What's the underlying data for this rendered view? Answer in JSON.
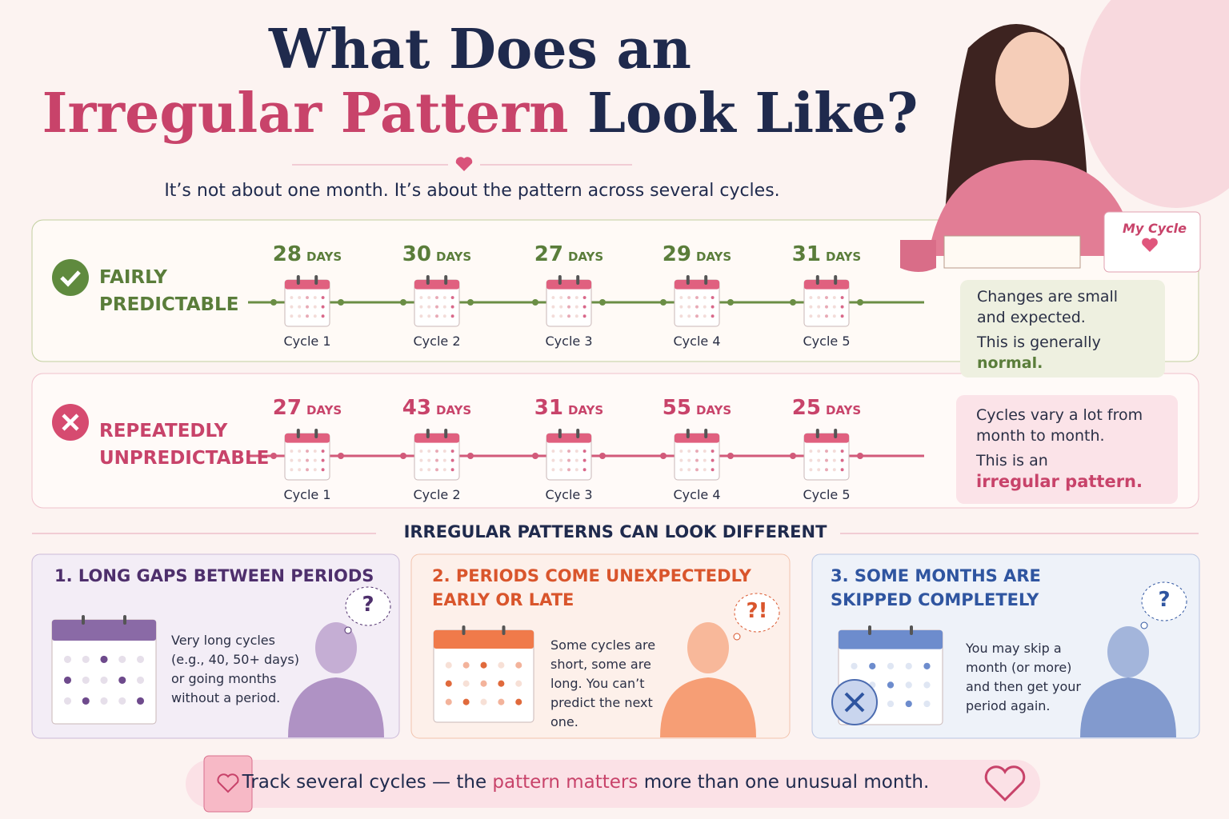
{
  "header": {
    "title_line1": "What Does an",
    "title_highlight": "Irregular Pattern",
    "title_end": "Look Like?",
    "subtitle": "It’s not about one month. It’s about the pattern across several cycles."
  },
  "illustration": {
    "calendar_label": "My Cycle"
  },
  "rows": [
    {
      "label": "FAIRLY PREDICTABLE",
      "unit": "DAYS",
      "cycles": [
        {
          "days": 28,
          "label": "Cycle 1"
        },
        {
          "days": 30,
          "label": "Cycle 2"
        },
        {
          "days": 27,
          "label": "Cycle 3"
        },
        {
          "days": 29,
          "label": "Cycle 4"
        },
        {
          "days": 31,
          "label": "Cycle 5"
        }
      ],
      "note_line1": "Changes are small and expected.",
      "note_line2": "This is generally",
      "note_highlight": "normal."
    },
    {
      "label": "REPEATEDLY UNPREDICTABLE",
      "unit": "DAYS",
      "cycles": [
        {
          "days": 27,
          "label": "Cycle 1"
        },
        {
          "days": 43,
          "label": "Cycle 2"
        },
        {
          "days": 31,
          "label": "Cycle 3"
        },
        {
          "days": 55,
          "label": "Cycle 4"
        },
        {
          "days": 25,
          "label": "Cycle 5"
        }
      ],
      "note_line1": "Cycles vary a lot from month to month.",
      "note_line2": "This is an",
      "note_highlight": "irregular pattern."
    }
  ],
  "section_title": "IRREGULAR PATTERNS CAN LOOK DIFFERENT",
  "cards": [
    {
      "title": "1. LONG GAPS BETWEEN PERIODS",
      "text": "Very long cycles (e.g., 40, 50+ days) or going months without a period.",
      "bubble": "?"
    },
    {
      "title": "2. PERIODS COME UNEXPECTEDLY EARLY OR LATE",
      "text": "Some cycles are short, some are long. You can’t predict the next one.",
      "bubble": "?!"
    },
    {
      "title": "3. SOME MONTHS ARE SKIPPED COMPLETELY",
      "text": "You may skip a month (or more) and then get your period again.",
      "bubble": "?"
    }
  ],
  "footer": {
    "text_start": "Track several cycles — the",
    "highlight": "pattern matters",
    "text_end": "more than one unusual month."
  }
}
